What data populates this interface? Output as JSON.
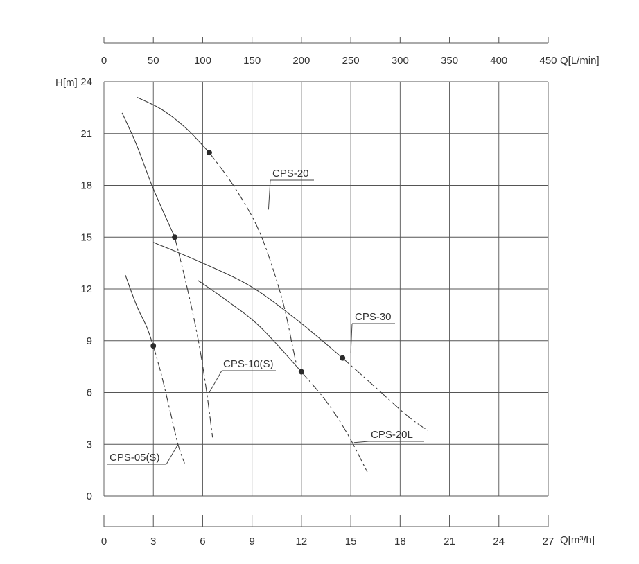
{
  "chart_data": {
    "type": "line",
    "y_axis": {
      "label": "H[m]",
      "range": [
        0,
        24
      ],
      "ticks": [
        "0",
        "3",
        "6",
        "9",
        "12",
        "15",
        "18",
        "21",
        "24"
      ]
    },
    "x_axis_bottom": {
      "label": "Q[m³/h]",
      "range": [
        0,
        27
      ],
      "ticks": [
        "0",
        "3",
        "6",
        "9",
        "12",
        "15",
        "18",
        "21",
        "24",
        "27"
      ]
    },
    "x_axis_top": {
      "label": "Q[L/min]",
      "range": [
        0,
        450
      ],
      "ticks": [
        "0",
        "50",
        "100",
        "150",
        "200",
        "250",
        "300",
        "350",
        "400",
        "450"
      ]
    },
    "grid": true,
    "series": [
      {
        "name": "CPS-05(S)",
        "solid": [
          [
            1.3,
            12.8
          ],
          [
            2.0,
            11.0
          ],
          [
            2.6,
            9.8
          ],
          [
            3.0,
            8.7
          ]
        ],
        "dashed": [
          [
            3.0,
            8.7
          ],
          [
            3.5,
            7.0
          ],
          [
            4.0,
            5.0
          ],
          [
            4.5,
            3.0
          ],
          [
            4.9,
            1.9
          ]
        ],
        "marker": [
          3.0,
          8.7
        ]
      },
      {
        "name": "CPS-10(S)",
        "solid": [
          [
            1.1,
            22.2
          ],
          [
            2.0,
            20.3
          ],
          [
            3.0,
            17.8
          ],
          [
            4.3,
            15.0
          ]
        ],
        "dashed": [
          [
            4.3,
            15.0
          ],
          [
            5.0,
            12.3
          ],
          [
            5.7,
            9.2
          ],
          [
            6.2,
            6.3
          ],
          [
            6.6,
            3.4
          ]
        ],
        "marker": [
          4.3,
          15.0
        ]
      },
      {
        "name": "CPS-20",
        "solid": [
          [
            2.0,
            23.1
          ],
          [
            3.5,
            22.4
          ],
          [
            5.0,
            21.3
          ],
          [
            6.4,
            19.9
          ]
        ],
        "dashed": [
          [
            6.4,
            19.9
          ],
          [
            8.0,
            17.8
          ],
          [
            9.5,
            15.2
          ],
          [
            10.8,
            11.5
          ],
          [
            11.5,
            8.5
          ],
          [
            11.7,
            7.6
          ]
        ],
        "marker": [
          6.4,
          19.9
        ]
      },
      {
        "name": "CPS-20L",
        "solid": [
          [
            5.7,
            12.5
          ],
          [
            7.5,
            11.3
          ],
          [
            9.5,
            9.8
          ],
          [
            12.0,
            7.2
          ]
        ],
        "dashed": [
          [
            12.0,
            7.2
          ],
          [
            13.5,
            5.5
          ],
          [
            14.8,
            3.6
          ],
          [
            16.0,
            1.4
          ]
        ],
        "marker": [
          12.0,
          7.2
        ]
      },
      {
        "name": "CPS-30",
        "solid": [
          [
            3.0,
            14.7
          ],
          [
            6.0,
            13.5
          ],
          [
            9.0,
            12.1
          ],
          [
            12.0,
            10.0
          ],
          [
            14.5,
            8.0
          ]
        ],
        "dashed": [
          [
            14.5,
            8.0
          ],
          [
            16.5,
            6.3
          ],
          [
            18.5,
            4.6
          ],
          [
            19.7,
            3.8
          ]
        ],
        "marker": [
          14.5,
          8.0
        ]
      }
    ],
    "annotations": [
      {
        "text": "CPS-05(S)",
        "anchor": [
          4.5,
          3.0
        ]
      },
      {
        "text": "CPS-10(S)",
        "anchor": [
          6.4,
          6.0
        ]
      },
      {
        "text": "CPS-20",
        "anchor": [
          10.0,
          16.6
        ]
      },
      {
        "text": "CPS-20L",
        "anchor": [
          15.2,
          3.1
        ]
      },
      {
        "text": "CPS-30",
        "anchor": [
          15.0,
          8.3
        ]
      }
    ]
  }
}
